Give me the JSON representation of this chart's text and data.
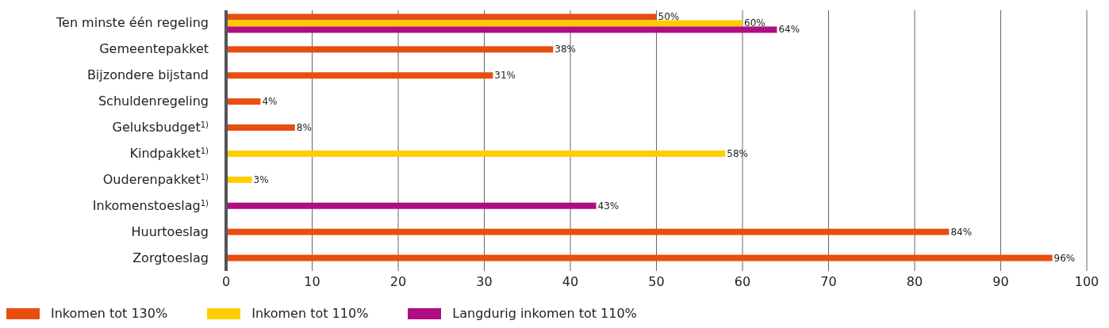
{
  "chart_data": {
    "type": "bar",
    "orientation": "horizontal",
    "categories": [
      "Ten minste één regeling",
      "Gemeentepakket",
      "Bijzondere bijstand",
      "Schuldenregeling",
      "Geluksbudget$^{1)}$",
      "Kindpakket$^{1)}$",
      "Ouderenpakket$^{1)}$",
      "Inkomenstoeslag$^{1)}$",
      "Huurtoeslag",
      "Zorgtoeslag"
    ],
    "series": [
      {
        "name": "Inkomen tot 130%",
        "color": "#e84e0f",
        "values": [
          50,
          38,
          31,
          4,
          8,
          null,
          null,
          null,
          84,
          96
        ],
        "value_labels": [
          "50%",
          "38%",
          "31%",
          "4%",
          "8%",
          null,
          null,
          null,
          "84%",
          "96%"
        ]
      },
      {
        "name": "Inkomen tot 110%",
        "color": "#ffcc00",
        "values": [
          60,
          null,
          null,
          null,
          null,
          58,
          3,
          null,
          null,
          null
        ],
        "value_labels": [
          "60%",
          null,
          null,
          null,
          null,
          "58%",
          "3%",
          null,
          null,
          null
        ]
      },
      {
        "name": "Langdurig inkomen tot 110%",
        "color": "#af0e80",
        "values": [
          64,
          null,
          null,
          null,
          null,
          null,
          null,
          43,
          null,
          null
        ],
        "value_labels": [
          "64%",
          null,
          null,
          null,
          null,
          null,
          null,
          "43%",
          null,
          null
        ]
      }
    ],
    "xlim": [
      0,
      100
    ],
    "xticks": [
      0,
      10,
      20,
      30,
      40,
      50,
      60,
      70,
      80,
      90,
      100
    ],
    "grid": "x",
    "legend": "bottom left"
  }
}
